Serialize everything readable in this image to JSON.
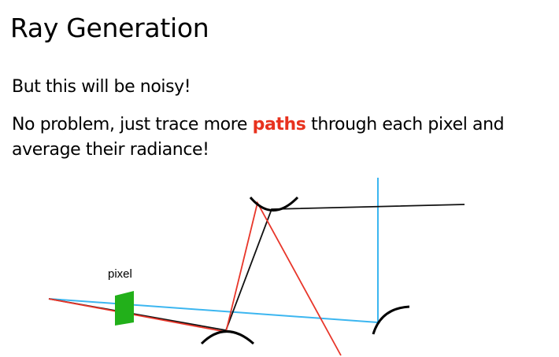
{
  "title": "Ray Generation",
  "bullets": {
    "line1": "But this will be noisy!",
    "line2_before": "No problem, just trace more ",
    "line2_highlight": "paths",
    "line2_after": " through each pixel and",
    "line3": "average their radiance!"
  },
  "diagram": {
    "pixel_label": "pixel"
  },
  "colors": {
    "highlight": "#e8321e",
    "ray_red": "#e8362a",
    "ray_blue": "#3cb6f0",
    "ray_black": "#111111",
    "pixel_fill": "#22b01a",
    "surface": "#000000"
  }
}
